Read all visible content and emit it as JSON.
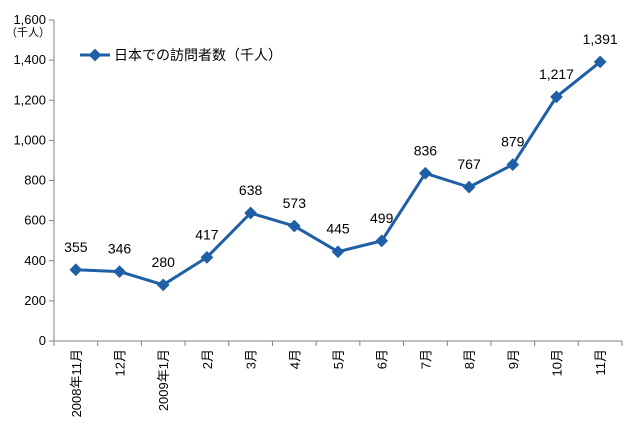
{
  "chart_data": {
    "type": "line",
    "unit_label": "（千人）",
    "categories": [
      "2008年11月",
      "12月",
      "2009年1月",
      "2月",
      "3月",
      "4月",
      "5月",
      "6月",
      "7月",
      "8月",
      "9月",
      "10月",
      "11月"
    ],
    "series": [
      {
        "name": "日本での訪問者数（千人）",
        "values": [
          355,
          346,
          280,
          417,
          638,
          573,
          445,
          499,
          836,
          767,
          879,
          1217,
          1391
        ],
        "value_labels": [
          "355",
          "346",
          "280",
          "417",
          "638",
          "573",
          "445",
          "499",
          "836",
          "767",
          "879",
          "1,217",
          "1,391"
        ],
        "color": "#1F5FA6"
      }
    ],
    "yticks": [
      0,
      200,
      400,
      600,
      800,
      1000,
      1200,
      1400,
      1600
    ],
    "ytick_labels": [
      "0",
      "200",
      "400",
      "600",
      "800",
      "1,000",
      "1,200",
      "1,400",
      "1,600"
    ],
    "ylim": [
      0,
      1600
    ],
    "grid": false,
    "legend_position": "top-left"
  }
}
